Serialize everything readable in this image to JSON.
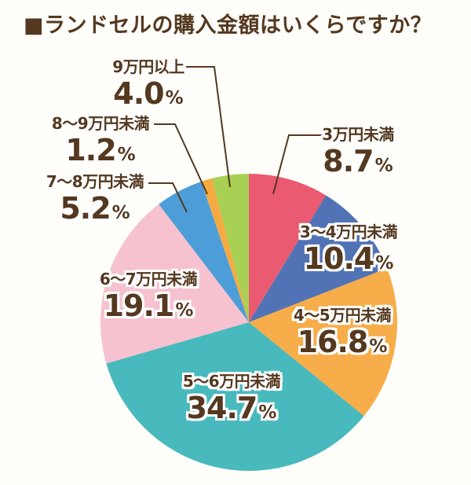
{
  "title": "■ランドセルの購入金額はいくらですか？",
  "colors": {
    "background": "#fffefa",
    "text": "#54381f",
    "leader_line": "#54381f",
    "label_outline": "#ffffff"
  },
  "chart_data": {
    "type": "pie",
    "title": "ランドセルの購入金額はいくらですか？",
    "unit": "%",
    "start_angle_deg": 0,
    "direction": "clockwise",
    "legend_position": "labels-around-pie",
    "slices": [
      {
        "label": "3万円未満",
        "value": 8.7,
        "display": "8.7",
        "color": "#ea5a71"
      },
      {
        "label": "3～4万円未満",
        "value": 10.4,
        "display": "10.4",
        "color": "#5173b5"
      },
      {
        "label": "4～5万円未満",
        "value": 16.8,
        "display": "16.8",
        "color": "#f7ad49"
      },
      {
        "label": "5～6万円未満",
        "value": 34.7,
        "display": "34.7",
        "color": "#48b9bd"
      },
      {
        "label": "6～7万円未満",
        "value": 19.1,
        "display": "19.1",
        "color": "#f6c2d0"
      },
      {
        "label": "7～8万円未満",
        "value": 5.2,
        "display": "5.2",
        "color": "#4d9ed8"
      },
      {
        "label": "8～9万円未満",
        "value": 1.2,
        "display": "1.2",
        "color": "#f6ab42"
      },
      {
        "label": "9万円以上",
        "value": 4.0,
        "display": "4.0",
        "color": "#a7d055"
      }
    ]
  }
}
